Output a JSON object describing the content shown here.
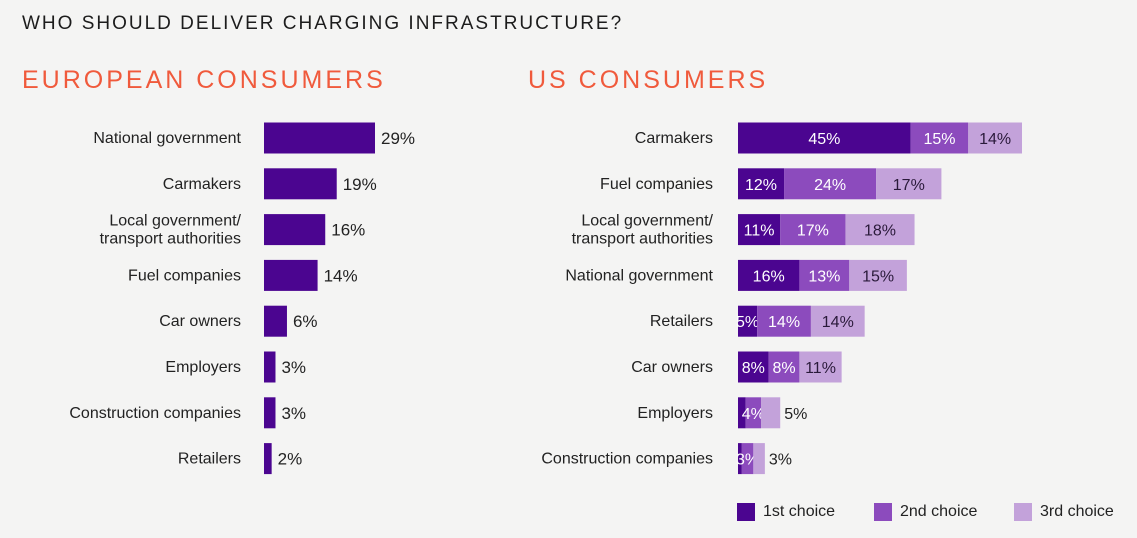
{
  "title": "WHO SHOULD DELIVER CHARGING INFRASTRUCTURE?",
  "colors": {
    "first": "#4b0590",
    "second": "#8c4bbd",
    "third": "#c3a2da",
    "accent": "#f05a3c"
  },
  "chart_data": [
    {
      "type": "bar",
      "orientation": "horizontal",
      "title": "EUROPEAN CONSUMERS",
      "categories": [
        "National government",
        "Carmakers",
        "Local government/transport authorities",
        "Fuel companies",
        "Car owners",
        "Employers",
        "Construction companies",
        "Retailers"
      ],
      "values": [
        29,
        19,
        16,
        14,
        6,
        3,
        3,
        2
      ],
      "data_labels": [
        "29%",
        "19%",
        "16%",
        "14%",
        "6%",
        "3%",
        "3%",
        "2%"
      ],
      "unit": "%"
    },
    {
      "type": "bar",
      "orientation": "horizontal",
      "stacked": true,
      "title": "US CONSUMERS",
      "categories": [
        "Carmakers",
        "Fuel companies",
        "Local government/ transport authorities",
        "National government",
        "Retailers",
        "Car owners",
        "Employers",
        "Construction companies"
      ],
      "series": [
        {
          "name": "1st choice",
          "values": [
            45,
            12,
            11,
            16,
            5,
            8,
            2,
            1
          ],
          "labels": [
            "45%",
            "12%",
            "11%",
            "16%",
            "5%",
            "8%",
            "",
            ""
          ]
        },
        {
          "name": "2nd choice",
          "values": [
            15,
            24,
            17,
            13,
            14,
            8,
            4,
            3
          ],
          "labels": [
            "15%",
            "24%",
            "17%",
            "13%",
            "14%",
            "8%",
            "4%",
            "3%"
          ]
        },
        {
          "name": "3rd choice",
          "values": [
            14,
            17,
            18,
            15,
            14,
            11,
            5,
            3
          ],
          "labels": [
            "14%",
            "17%",
            "18%",
            "15%",
            "14%",
            "11%",
            "5%",
            "3%"
          ]
        }
      ],
      "legend": "bottom-right",
      "unit": "%"
    }
  ]
}
